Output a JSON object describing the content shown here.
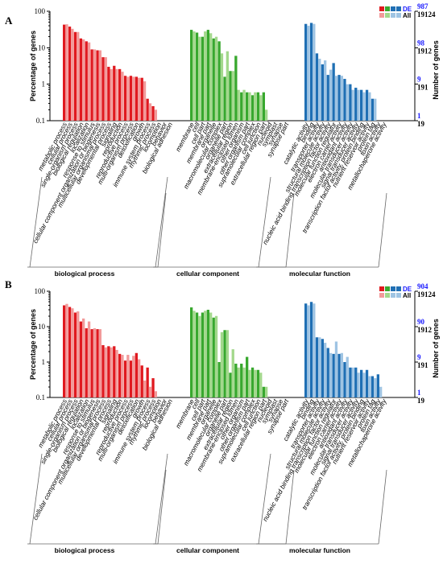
{
  "figure_name": "GO enrichment figure",
  "chart_data": [
    {
      "panel_label": "A",
      "type": "bar",
      "y_scale": "log",
      "ylabel": "Percentage of genes",
      "ylabel_right": "Number of genes",
      "y_ticks_left": [
        "100",
        "10",
        "1",
        "0.1"
      ],
      "y_ticks_right_de": [
        "987",
        "98",
        "9",
        "1"
      ],
      "y_ticks_right_all": [
        "19124",
        "1912",
        "191",
        "19"
      ],
      "legend": {
        "de_label": "DE",
        "all_label": "All"
      },
      "group_labels": [
        "biological process",
        "cellular component",
        "molecular function"
      ],
      "groups": [
        {
          "name": "biological process",
          "color_de": "#e0191f",
          "color_all": "#f29a9a",
          "categories": [
            "metabolic process",
            "cellular process",
            "single-organism process",
            "biological regulation",
            "localization",
            "response to stimulus",
            "cellular component organization or biogenesis",
            "multicellular organismal process",
            "developmental process",
            "signaling",
            "reproduction",
            "reproductive process",
            "multi-organism process",
            "detoxification",
            "growth",
            "immune system process",
            "rhythmic process",
            "locomotion",
            "behavior",
            "biological adhesion"
          ],
          "de": [
            43,
            38,
            27,
            18,
            15,
            9,
            8.5,
            5.5,
            3,
            3.2,
            2.6,
            1.7,
            1.7,
            1.6,
            1.5,
            0.4,
            0.25,
            0,
            0,
            0
          ],
          "all": [
            44,
            33,
            27,
            17,
            14,
            9,
            8.5,
            5.5,
            2.6,
            2.6,
            2.2,
            1.6,
            1.6,
            1.5,
            1.2,
            0.3,
            0.2,
            0,
            0,
            0
          ]
        },
        {
          "name": "cellular component",
          "color_de": "#38a82e",
          "color_all": "#a3d88c",
          "categories": [
            "membrane",
            "cell",
            "cell part",
            "membrane part",
            "organelle",
            "macromolecular complex",
            "organelle part",
            "extracellular region",
            "membrane-enclosed lumen",
            "other organism",
            "other organism part",
            "supramolecular complex",
            "cell junction",
            "extracellular region part",
            "nucleoid",
            "symplast",
            "synapse",
            "synapse part"
          ],
          "de": [
            31,
            26,
            20,
            31,
            18,
            15,
            1.6,
            2.3,
            6,
            0.6,
            0.6,
            0.5,
            0.6,
            0.6,
            0,
            0,
            0,
            0
          ],
          "all": [
            28,
            20,
            28,
            25,
            20,
            7,
            8,
            2.3,
            0.7,
            0.7,
            0.6,
            0.6,
            0.5,
            0.2,
            0,
            0,
            0,
            0
          ]
        },
        {
          "name": "molecular function",
          "color_de": "#1f6fb4",
          "color_all": "#9fc4e3",
          "categories": [
            "catalytic activity",
            "binding",
            "transporter activity",
            "structural molecule activity",
            "nucleic acid binding transcription factor activity",
            "molecular function regulator",
            "electron carrier activity",
            "antioxidant activity",
            "molecular transducer activity",
            "signal transducer activity",
            "transcription factor activity, protein binding",
            "nutrient reservoir activity",
            "protein tag",
            "toxin activity",
            "metallochaperone activity"
          ],
          "de": [
            45,
            48,
            7,
            3.5,
            1.8,
            3.8,
            1.8,
            1.4,
            1.0,
            0.8,
            0.7,
            0.7,
            0.4,
            0,
            0
          ],
          "all": [
            40,
            45,
            5,
            4.5,
            2.5,
            1.7,
            1.7,
            1.0,
            0.7,
            0.7,
            0.6,
            0.6,
            0.4,
            0,
            0
          ]
        }
      ]
    },
    {
      "panel_label": "B",
      "type": "bar",
      "y_scale": "log",
      "ylabel": "Percentage of genes",
      "ylabel_right": "Number of genes",
      "y_ticks_left": [
        "100",
        "10",
        "1",
        "0.1"
      ],
      "y_ticks_right_de": [
        "904",
        "90",
        "9",
        "1"
      ],
      "y_ticks_right_all": [
        "19124",
        "1912",
        "191",
        "19"
      ],
      "legend": {
        "de_label": "DE",
        "all_label": "All"
      },
      "group_labels": [
        "biological process",
        "cellular component",
        "molecular function"
      ],
      "groups": [
        {
          "name": "biological process",
          "color_de": "#e0191f",
          "color_all": "#f29a9a",
          "categories": [
            "metabolic process",
            "cellular process",
            "single-organism process",
            "biological regulation",
            "localization",
            "response to stimulus",
            "cellular component organization or biogenesis",
            "multicellular organismal process",
            "developmental process",
            "signaling",
            "reproduction",
            "reproductive process",
            "multi-organism process",
            "detoxification",
            "growth",
            "immune system process",
            "rhythmic process",
            "locomotion",
            "behavior",
            "biological adhesion"
          ],
          "de": [
            40,
            36,
            25,
            14,
            9,
            8.5,
            8.5,
            3,
            2.8,
            2.8,
            1.7,
            1.1,
            1.1,
            1.8,
            0.8,
            0.7,
            0.35,
            0,
            0,
            0
          ],
          "all": [
            44,
            33,
            27,
            17,
            14,
            9,
            8.5,
            2.6,
            2.6,
            2.2,
            1.6,
            1.6,
            1.5,
            1.2,
            0.3,
            0.2,
            0.15,
            0,
            0,
            0
          ]
        },
        {
          "name": "cellular component",
          "color_de": "#38a82e",
          "color_all": "#a3d88c",
          "categories": [
            "membrane",
            "cell",
            "cell part",
            "membrane part",
            "organelle",
            "macromolecular complex",
            "organelle part",
            "extracellular region",
            "membrane-enclosed lumen",
            "other organism",
            "other organism part",
            "supramolecular complex",
            "cell junction",
            "extracellular region part",
            "nucleoid",
            "symplast",
            "synapse",
            "synapse part"
          ],
          "de": [
            35,
            25,
            25,
            30,
            18,
            1.0,
            8,
            0.5,
            0.9,
            0.9,
            1.4,
            0.7,
            0.6,
            0.2,
            0,
            0,
            0,
            0
          ],
          "all": [
            28,
            20,
            28,
            25,
            20,
            7,
            8,
            2.3,
            0.7,
            0.7,
            0.6,
            0.6,
            0.5,
            0.2,
            0,
            0,
            0,
            0
          ]
        },
        {
          "name": "molecular function",
          "color_de": "#1f6fb4",
          "color_all": "#9fc4e3",
          "categories": [
            "catalytic activity",
            "binding",
            "transporter activity",
            "structural molecule activity",
            "nucleic acid binding transcription factor activity",
            "molecular function regulator",
            "electron carrier activity",
            "antioxidant activity",
            "molecular transducer activity",
            "signal transducer activity",
            "transcription factor activity, protein binding",
            "nutrient reservoir activity",
            "protein tag",
            "toxin activity",
            "metallochaperone activity"
          ],
          "de": [
            45,
            50,
            5,
            4.5,
            2.5,
            1.7,
            1.7,
            1.0,
            0.7,
            0.7,
            0.6,
            0.6,
            0.4,
            0.45,
            0
          ],
          "all": [
            40,
            45,
            5,
            3.5,
            1.8,
            3.8,
            1.8,
            1.4,
            0.7,
            0.5,
            0.5,
            0.4,
            0.35,
            0.2,
            0
          ]
        }
      ]
    }
  ]
}
